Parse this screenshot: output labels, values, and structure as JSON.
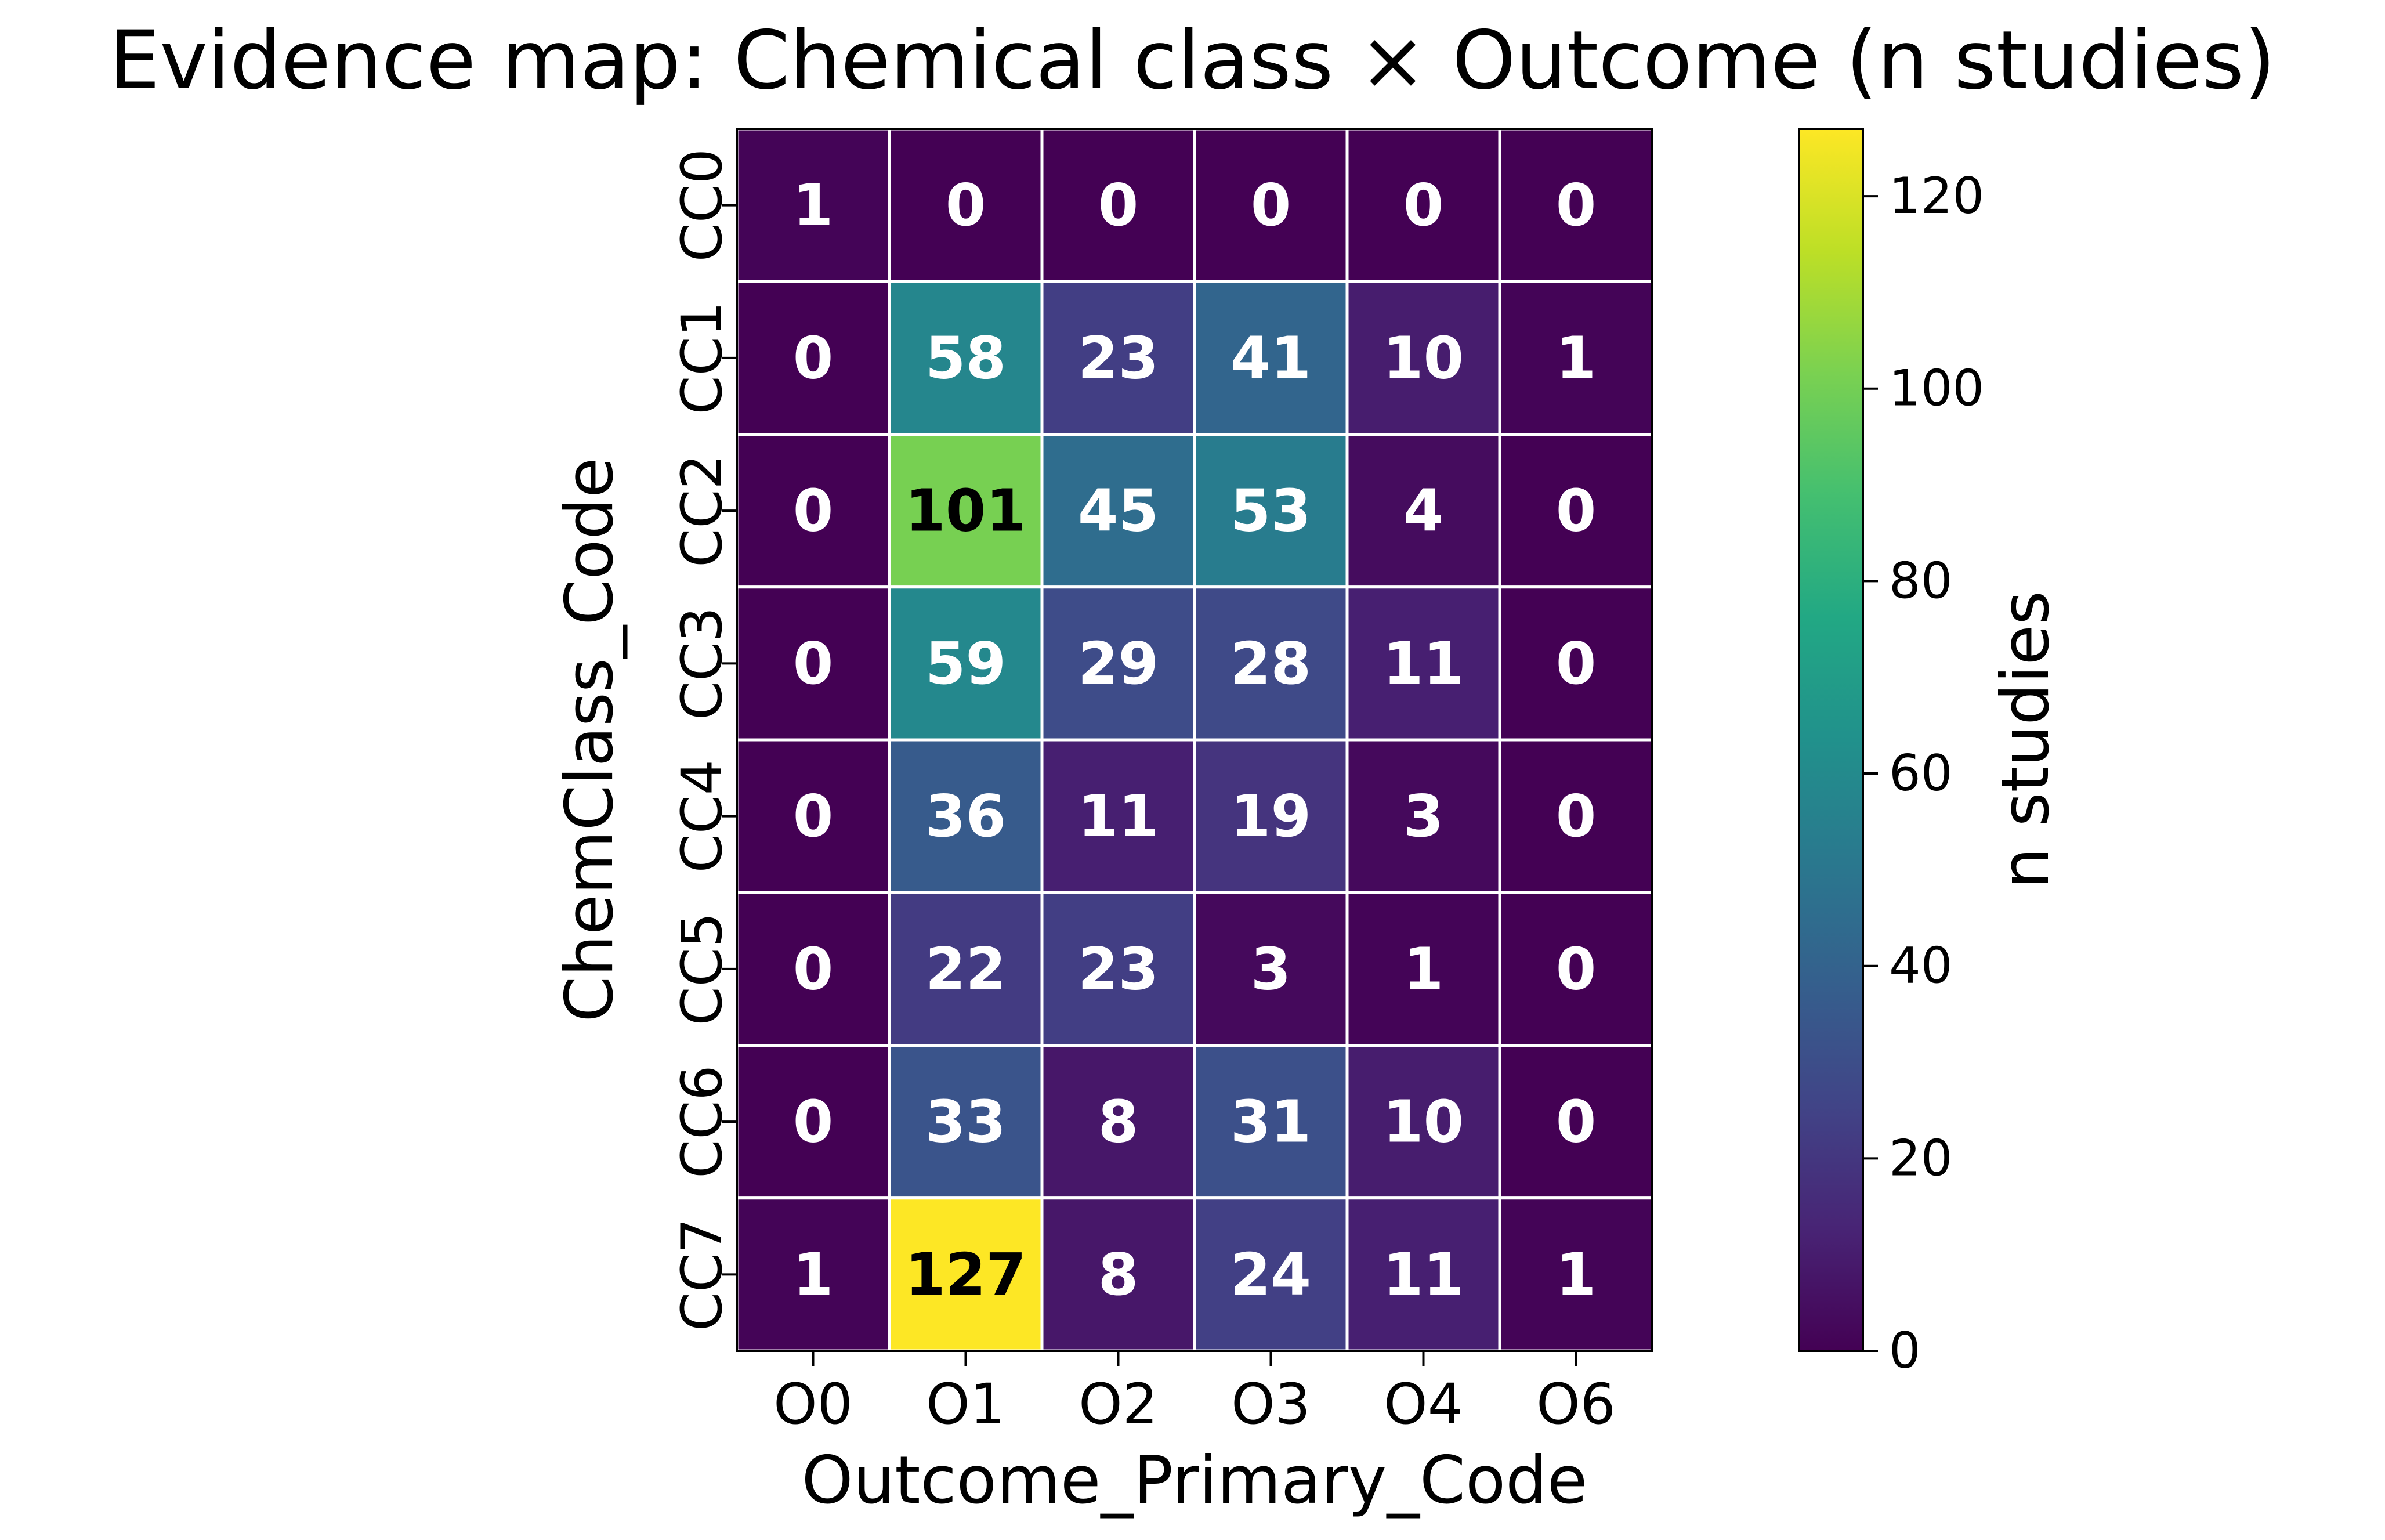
{
  "chart_data": {
    "type": "heatmap",
    "title": "Evidence map: Chemical class × Outcome (n studies)",
    "xlabel": "Outcome_Primary_Code",
    "ylabel": "ChemClass_Code",
    "x_categories": [
      "O0",
      "O1",
      "O2",
      "O3",
      "O4",
      "O6"
    ],
    "y_categories": [
      "CC0",
      "CC1",
      "CC2",
      "CC3",
      "CC4",
      "CC5",
      "CC6",
      "CC7"
    ],
    "values": [
      [
        1,
        0,
        0,
        0,
        0,
        0
      ],
      [
        0,
        58,
        23,
        41,
        10,
        1
      ],
      [
        0,
        101,
        45,
        53,
        4,
        0
      ],
      [
        0,
        59,
        29,
        28,
        11,
        0
      ],
      [
        0,
        36,
        11,
        19,
        3,
        0
      ],
      [
        0,
        22,
        23,
        3,
        1,
        0
      ],
      [
        0,
        33,
        8,
        31,
        10,
        0
      ],
      [
        1,
        127,
        8,
        24,
        11,
        1
      ]
    ],
    "colorbar": {
      "label": "n studies",
      "colormap": "viridis",
      "range": [
        0,
        127
      ],
      "ticks": [
        0,
        20,
        40,
        60,
        80,
        100,
        120
      ]
    },
    "annotations": "cell counts shown in each cell"
  }
}
